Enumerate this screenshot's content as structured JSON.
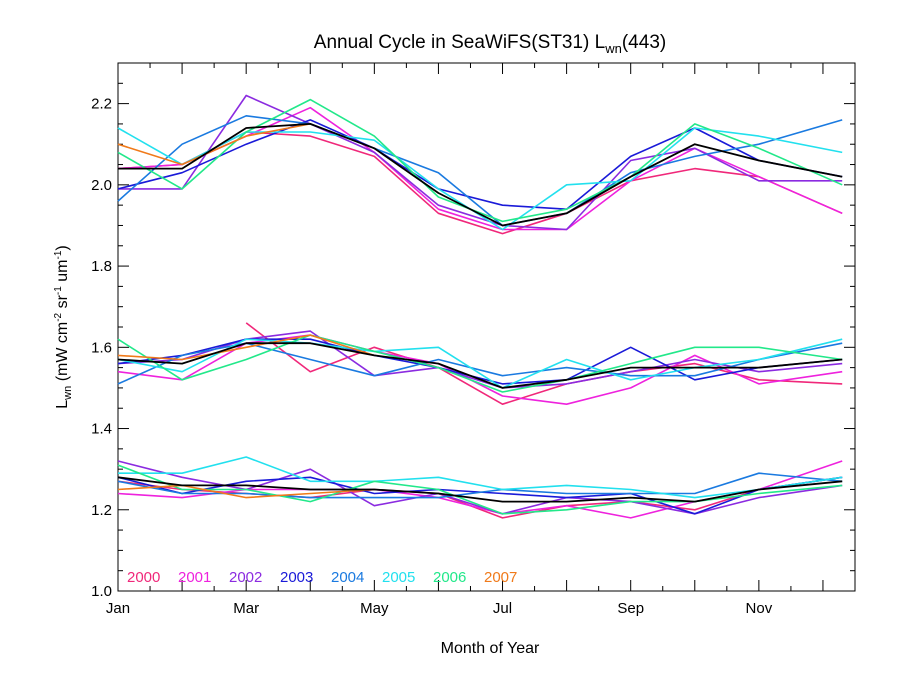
{
  "chart_data": {
    "type": "line",
    "title": "Annual Cycle in SeaWiFS(ST31) L",
    "title_sub": "wn",
    "title_suffix": "(443)",
    "xlabel": "Month of Year",
    "ylabel": {
      "main": "L",
      "main_sub": "wn",
      "open": " (mW cm",
      "sup1": "-2",
      "mid": " sr",
      "sup2": "-1",
      "end": " um",
      "sup3": "-1",
      "close": ")"
    },
    "xlim": [
      1,
      12.5
    ],
    "ylim": [
      1.0,
      2.3
    ],
    "x_ticks": [
      {
        "x": 1,
        "label": "Jan"
      },
      {
        "x": 3,
        "label": "Mar"
      },
      {
        "x": 5,
        "label": "May"
      },
      {
        "x": 7,
        "label": "Jul"
      },
      {
        "x": 9,
        "label": "Sep"
      },
      {
        "x": 11,
        "label": "Nov"
      }
    ],
    "y_ticks": [
      {
        "y": 1.0,
        "label": "1.0"
      },
      {
        "y": 1.2,
        "label": "1.2"
      },
      {
        "y": 1.4,
        "label": "1.4"
      },
      {
        "y": 1.6,
        "label": "1.6"
      },
      {
        "y": 1.8,
        "label": "1.8"
      },
      {
        "y": 2.0,
        "label": "2.0"
      },
      {
        "y": 2.2,
        "label": "2.2"
      }
    ],
    "legend_position": "bottom-left",
    "series": [
      {
        "name": "2000",
        "color": "#f0287a",
        "groups": [
          {
            "x": [
              1,
              2,
              3,
              4,
              5,
              6,
              7,
              8,
              9,
              10,
              11,
              12.3
            ],
            "y": [
              2.04,
              2.05,
              2.13,
              2.12,
              2.07,
              1.93,
              1.88,
              1.93,
              2.01,
              2.04,
              2.02,
              1.93
            ]
          },
          {
            "x": [
              3,
              4,
              5,
              6,
              7,
              8,
              9,
              10,
              11,
              12.3
            ],
            "y": [
              1.66,
              1.54,
              1.6,
              1.55,
              1.46,
              1.51,
              1.54,
              1.56,
              1.52,
              1.51
            ]
          },
          {
            "x": [
              1,
              2,
              3,
              4,
              5,
              6,
              7,
              8,
              9,
              10,
              11,
              12.3
            ],
            "y": [
              1.27,
              1.25,
              1.24,
              1.23,
              1.25,
              1.24,
              1.18,
              1.21,
              1.22,
              1.2,
              1.25,
              1.28
            ]
          }
        ]
      },
      {
        "name": "2001",
        "color": "#ee22dd",
        "groups": [
          {
            "x": [
              1,
              2,
              3,
              4,
              5,
              6,
              7,
              8,
              9,
              10,
              11,
              12.3
            ],
            "y": [
              2.04,
              2.05,
              2.12,
              2.19,
              2.08,
              1.94,
              1.89,
              1.89,
              2.01,
              2.09,
              2.02,
              1.93
            ]
          },
          {
            "x": [
              1,
              2,
              3,
              4,
              5,
              6,
              7,
              8,
              9,
              10,
              11,
              12.3
            ],
            "y": [
              1.54,
              1.52,
              1.61,
              1.63,
              1.59,
              1.56,
              1.48,
              1.46,
              1.5,
              1.58,
              1.51,
              1.54
            ]
          },
          {
            "x": [
              1,
              2,
              3,
              4,
              5,
              6,
              7,
              8,
              9,
              10,
              11,
              12.3
            ],
            "y": [
              1.24,
              1.23,
              1.25,
              1.25,
              1.25,
              1.23,
              1.19,
              1.21,
              1.18,
              1.22,
              1.25,
              1.32
            ]
          }
        ]
      },
      {
        "name": "2002",
        "color": "#8b2be0",
        "groups": [
          {
            "x": [
              1,
              2,
              3,
              4,
              5,
              6,
              7,
              8,
              9,
              10,
              11,
              12.3
            ],
            "y": [
              1.99,
              1.99,
              2.22,
              2.15,
              2.08,
              1.95,
              1.9,
              1.89,
              2.06,
              2.09,
              2.01,
              2.01
            ]
          },
          {
            "x": [
              1,
              2,
              3,
              4,
              5,
              6,
              7,
              8,
              9,
              10,
              11,
              12.3
            ],
            "y": [
              1.56,
              1.57,
              1.62,
              1.64,
              1.53,
              1.55,
              1.5,
              1.51,
              1.54,
              1.57,
              1.54,
              1.56
            ]
          },
          {
            "x": [
              1,
              2,
              3,
              4,
              5,
              6,
              7,
              8,
              9,
              10,
              11,
              12.3
            ],
            "y": [
              1.32,
              1.28,
              1.25,
              1.3,
              1.21,
              1.24,
              1.19,
              1.23,
              1.22,
              1.19,
              1.23,
              1.26
            ]
          }
        ]
      },
      {
        "name": "2003",
        "color": "#1a1ad8",
        "groups": [
          {
            "x": [
              1,
              2,
              3,
              4,
              5,
              6,
              7,
              8,
              9,
              10,
              11,
              12.3
            ],
            "y": [
              1.99,
              2.03,
              2.1,
              2.16,
              2.09,
              1.99,
              1.95,
              1.94,
              2.07,
              2.14,
              2.06,
              2.02
            ]
          },
          {
            "x": [
              1,
              2,
              3,
              4,
              5,
              6,
              7,
              8,
              9,
              10,
              11,
              12.3
            ],
            "y": [
              1.56,
              1.58,
              1.62,
              1.62,
              1.58,
              1.55,
              1.51,
              1.52,
              1.6,
              1.52,
              1.55,
              1.57
            ]
          },
          {
            "x": [
              1,
              2,
              3,
              4,
              5,
              6,
              7,
              8,
              9,
              10,
              11,
              12.3
            ],
            "y": [
              1.28,
              1.24,
              1.27,
              1.28,
              1.24,
              1.25,
              1.24,
              1.23,
              1.24,
              1.19,
              1.25,
              1.28
            ]
          }
        ]
      },
      {
        "name": "2004",
        "color": "#1a7ae0",
        "groups": [
          {
            "x": [
              1,
              2,
              3,
              4,
              5,
              6,
              7,
              8,
              9,
              10,
              11,
              12.3
            ],
            "y": [
              1.96,
              2.1,
              2.17,
              2.15,
              2.09,
              2.03,
              1.9,
              1.93,
              2.03,
              2.07,
              2.1,
              2.16
            ]
          },
          {
            "x": [
              1,
              2,
              3,
              4,
              5,
              6,
              7,
              8,
              9,
              10,
              11,
              12.3
            ],
            "y": [
              1.51,
              1.58,
              1.61,
              1.57,
              1.53,
              1.57,
              1.53,
              1.55,
              1.53,
              1.53,
              1.57,
              1.61
            ]
          },
          {
            "x": [
              1,
              2,
              3,
              4,
              5,
              6,
              7,
              8,
              9,
              10,
              11,
              12.3
            ],
            "y": [
              1.27,
              1.24,
              1.24,
              1.23,
              1.23,
              1.23,
              1.25,
              1.24,
              1.24,
              1.24,
              1.29,
              1.27
            ]
          }
        ]
      },
      {
        "name": "2005",
        "color": "#22e0ee",
        "groups": [
          {
            "x": [
              1,
              2,
              3,
              4,
              5,
              6,
              7,
              8,
              9,
              10,
              11,
              12.3
            ],
            "y": [
              2.14,
              2.05,
              2.13,
              2.13,
              2.11,
              1.99,
              1.89,
              2.0,
              2.01,
              2.14,
              2.12,
              2.08
            ]
          },
          {
            "x": [
              1,
              2,
              3,
              4,
              5,
              6,
              7,
              8,
              9,
              10,
              11,
              12.3
            ],
            "y": [
              1.57,
              1.54,
              1.62,
              1.61,
              1.59,
              1.6,
              1.5,
              1.57,
              1.52,
              1.55,
              1.57,
              1.62
            ]
          },
          {
            "x": [
              1,
              2,
              3,
              4,
              5,
              6,
              7,
              8,
              9,
              10,
              11,
              12.3
            ],
            "y": [
              1.29,
              1.29,
              1.33,
              1.27,
              1.27,
              1.28,
              1.25,
              1.26,
              1.25,
              1.23,
              1.25,
              1.28
            ]
          }
        ]
      },
      {
        "name": "2006",
        "color": "#22e88a",
        "groups": [
          {
            "x": [
              1,
              2,
              3,
              4,
              5,
              6,
              7,
              8,
              9,
              10,
              11,
              12.3
            ],
            "y": [
              2.08,
              1.99,
              2.13,
              2.21,
              2.12,
              1.97,
              1.91,
              1.94,
              2.02,
              2.15,
              2.09,
              2.0
            ]
          },
          {
            "x": [
              1,
              2,
              3,
              4,
              5,
              6,
              7,
              8,
              9,
              10,
              11,
              12.3
            ],
            "y": [
              1.62,
              1.52,
              1.57,
              1.63,
              1.59,
              1.55,
              1.49,
              1.52,
              1.56,
              1.6,
              1.6,
              1.57
            ]
          },
          {
            "x": [
              1,
              2,
              3,
              4,
              5,
              6,
              7,
              8,
              9,
              10,
              11,
              12.3
            ],
            "y": [
              1.31,
              1.25,
              1.25,
              1.22,
              1.27,
              1.25,
              1.19,
              1.2,
              1.22,
              1.22,
              1.24,
              1.26
            ]
          }
        ]
      },
      {
        "name": "2007",
        "color": "#f07a1a",
        "groups": [
          {
            "x": [
              1,
              2,
              3,
              4
            ],
            "y": [
              2.1,
              2.05,
              2.12,
              2.15
            ]
          },
          {
            "x": [
              1,
              2,
              3,
              4,
              5
            ],
            "y": [
              1.58,
              1.57,
              1.6,
              1.63,
              1.58
            ]
          },
          {
            "x": [
              1,
              2,
              3,
              4,
              5
            ],
            "y": [
              1.25,
              1.26,
              1.23,
              1.24,
              1.25
            ]
          }
        ]
      },
      {
        "name": "",
        "color": "#000000",
        "groups": [
          {
            "x": [
              1,
              2,
              3,
              4,
              5,
              6,
              7,
              8,
              9,
              10,
              11,
              12.3
            ],
            "y": [
              2.04,
              2.04,
              2.14,
              2.15,
              2.09,
              1.98,
              1.9,
              1.93,
              2.02,
              2.1,
              2.06,
              2.02
            ]
          },
          {
            "x": [
              1,
              2,
              3,
              4,
              5,
              6,
              7,
              8,
              9,
              10,
              11,
              12.3
            ],
            "y": [
              1.57,
              1.56,
              1.61,
              1.61,
              1.58,
              1.56,
              1.5,
              1.52,
              1.55,
              1.55,
              1.55,
              1.57
            ]
          },
          {
            "x": [
              1,
              2,
              3,
              4,
              5,
              6,
              7,
              8,
              9,
              10,
              11,
              12.3
            ],
            "y": [
              1.28,
              1.26,
              1.26,
              1.25,
              1.25,
              1.24,
              1.22,
              1.22,
              1.23,
              1.22,
              1.25,
              1.27
            ]
          }
        ]
      }
    ]
  }
}
